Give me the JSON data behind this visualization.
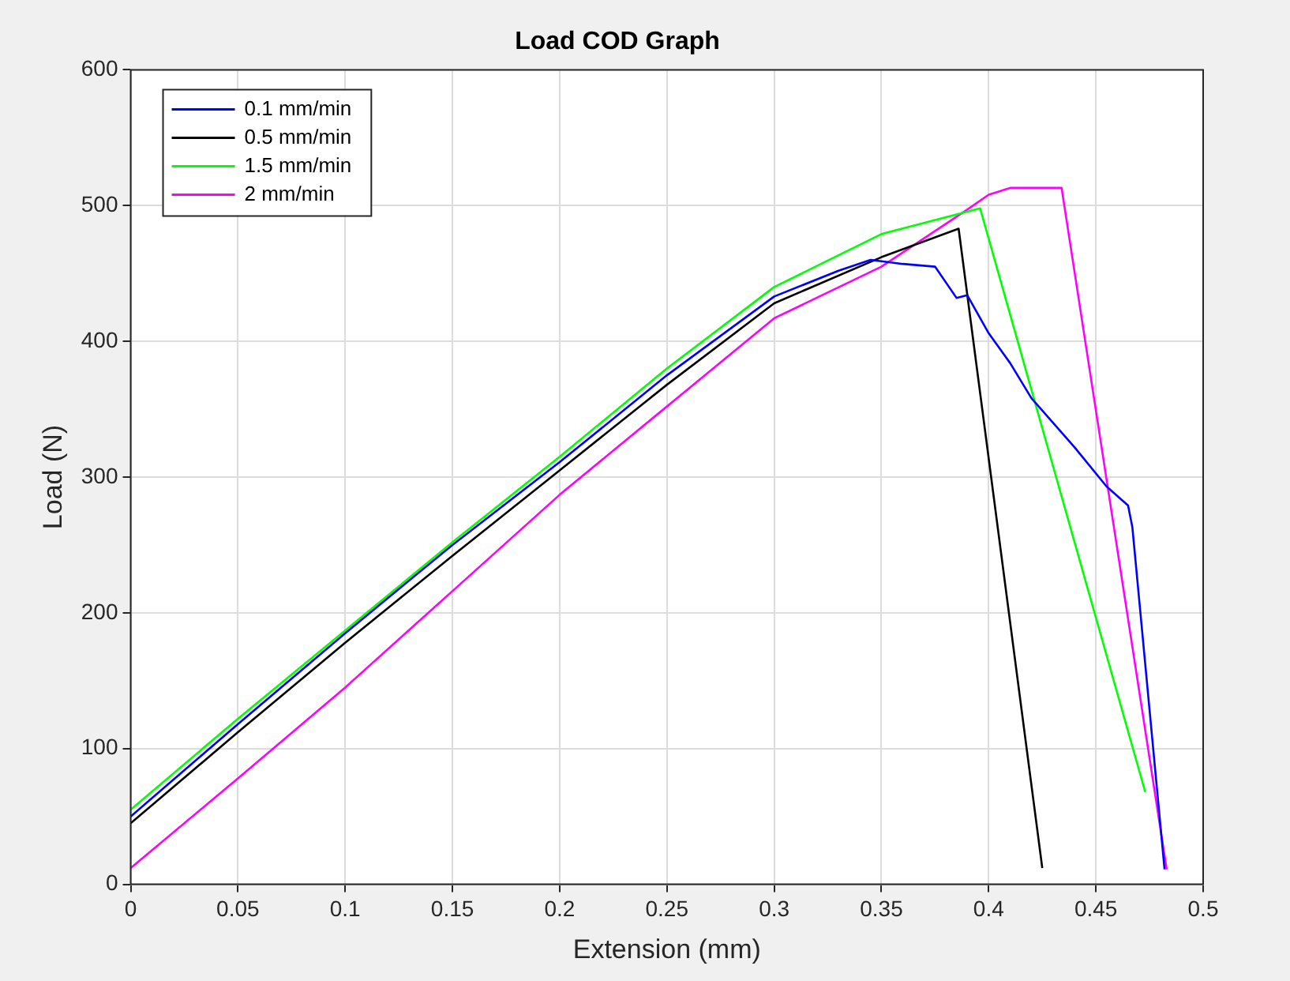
{
  "chart_data": {
    "type": "line",
    "title": "Load COD Graph",
    "xlabel": "Extension (mm)",
    "ylabel": "Load (N)",
    "xlim": [
      0,
      0.5
    ],
    "xticks": [
      0,
      0.05,
      0.1,
      0.15,
      0.2,
      0.25,
      0.3,
      0.35,
      0.4,
      0.45,
      0.5
    ],
    "ylim": [
      0,
      600
    ],
    "yticks": [
      0,
      100,
      200,
      300,
      400,
      500,
      600
    ],
    "grid": true,
    "legend": "top left",
    "marker": "none",
    "line_style": "solid",
    "series": [
      {
        "name": "0.1 mm/min",
        "color": "#0000ff",
        "x": [
          0,
          0.05,
          0.1,
          0.15,
          0.2,
          0.25,
          0.3,
          0.33,
          0.345,
          0.36,
          0.375,
          0.385,
          0.39,
          0.4,
          0.41,
          0.42,
          0.44,
          0.455,
          0.465,
          0.467,
          0.482
        ],
        "values": [
          50,
          118,
          185,
          250,
          311,
          375,
          433,
          452,
          460,
          457,
          455,
          432,
          434,
          406,
          384,
          358,
          322,
          293,
          279,
          263,
          11
        ]
      },
      {
        "name": "0.5 mm/min",
        "color": "#000000",
        "x": [
          0,
          0.05,
          0.1,
          0.15,
          0.2,
          0.25,
          0.3,
          0.35,
          0.386,
          0.425
        ],
        "values": [
          45,
          112,
          178,
          242,
          305,
          368,
          428,
          462,
          483,
          12
        ]
      },
      {
        "name": "1.5 mm/min",
        "color": "#00ff00",
        "x": [
          0,
          0.05,
          0.1,
          0.15,
          0.2,
          0.25,
          0.3,
          0.35,
          0.396,
          0.473
        ],
        "values": [
          55,
          122,
          187,
          252,
          315,
          380,
          440,
          479,
          498,
          68
        ]
      },
      {
        "name": "2 mm/min",
        "color": "#ff00ff",
        "x": [
          0,
          0.05,
          0.1,
          0.15,
          0.2,
          0.25,
          0.3,
          0.35,
          0.39,
          0.4,
          0.41,
          0.434,
          0.483
        ],
        "values": [
          12,
          78,
          145,
          216,
          287,
          352,
          417,
          455,
          497,
          508,
          513,
          513,
          11
        ]
      }
    ]
  }
}
